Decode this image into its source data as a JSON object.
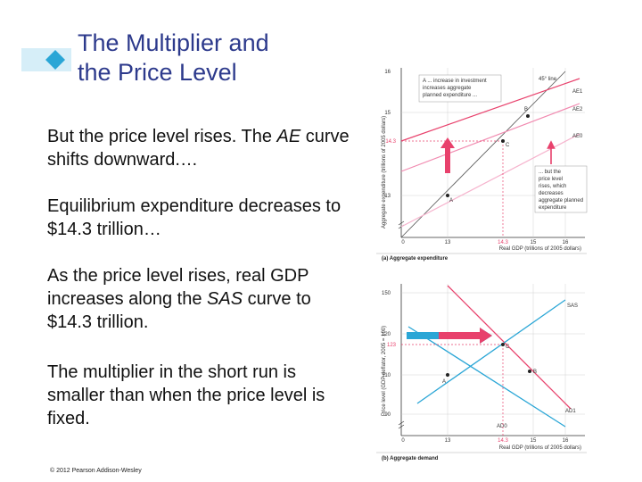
{
  "slide": {
    "title_line1": "The Multiplier and",
    "title_line2": "the Price Level",
    "p1_a": "But the price level rises. The ",
    "p1_b": "AE",
    "p1_c": " curve shifts downward.…",
    "p2": "Equilibrium expenditure decreases to $14.3 trillion…",
    "p3_a": "As the price level rises, real GDP increases along the ",
    "p3_b": "SAS",
    "p3_c": " curve to $14.3 trillion.",
    "p4": "The multiplier in the short run is smaller than when the price level is fixed.",
    "copyright": "© 2012 Pearson Addison-Wesley"
  },
  "figure_a": {
    "ylabel": "Aggregate expenditure (trillions of 2005 dollars)",
    "xlabel": "Real GDP (trillions of 2005 dollars)",
    "caption": "(a) Aggregate expenditure",
    "y_ticks": [
      "16",
      "15",
      "13",
      "0"
    ],
    "x_ticks": [
      "13",
      "14.3",
      "15",
      "16"
    ],
    "y_marker": "14.3",
    "annot_top": "A ... increase in investment increases aggregate planned expenditure ...",
    "annot_bottom": "... but the price level rises, which decreases aggregate planned expenditure",
    "line45": "45° line",
    "curves": [
      "AE1",
      "AE2",
      "AE0"
    ],
    "points": [
      "B",
      "C",
      "A"
    ]
  },
  "figure_b": {
    "ylabel": "Price level (GDP deflator, 2005 = 100)",
    "xlabel": "Real GDP (trillions of 2005 dollars)",
    "caption": "(b) Aggregate demand",
    "y_ticks": [
      "150",
      "120",
      "110",
      "90",
      "0"
    ],
    "x_ticks": [
      "13",
      "14.3",
      "15",
      "16"
    ],
    "y_marker": "123",
    "curves": [
      "SAS",
      "AD1",
      "AD0"
    ],
    "points": [
      "A",
      "B",
      "C"
    ]
  },
  "colors": {
    "title": "#2d3a8c",
    "accent_pink": "#e8416c",
    "accent_blue": "#2aa6d6"
  }
}
